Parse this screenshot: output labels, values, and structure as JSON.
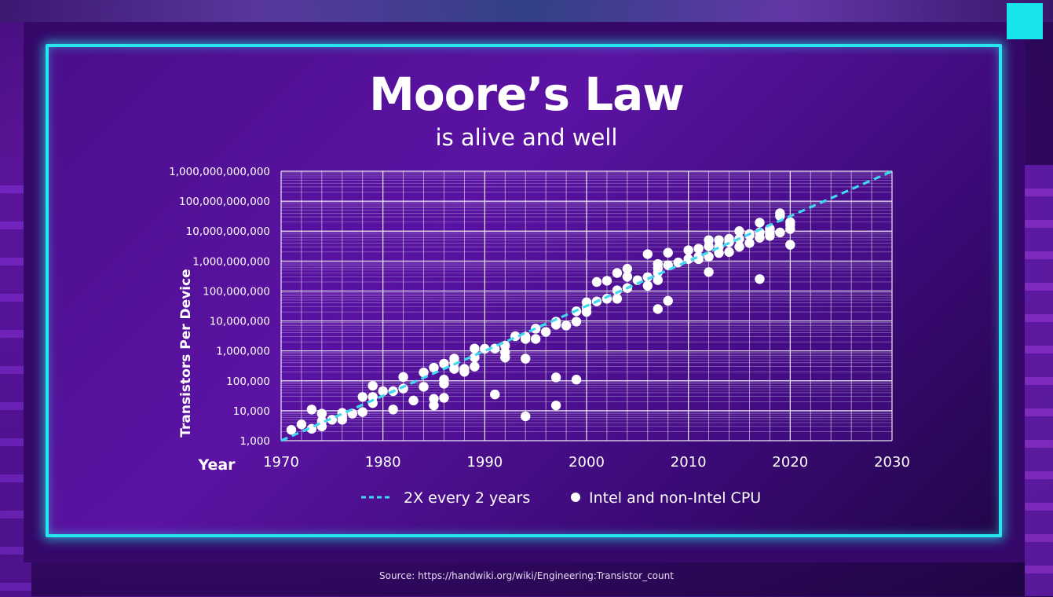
{
  "slide": {
    "title": "Moore’s Law",
    "subtitle": "is alive and well",
    "source": "Source: https://handwiki.org/wiki/Engineering:Transistor_count"
  },
  "colors": {
    "accent": "#27e6ee",
    "background": "#4b0e8c",
    "grid": "#ffffff",
    "points": "#ffffff",
    "trend": "#3fd8f0"
  },
  "chart_data": {
    "type": "scatter",
    "xlabel": "Year",
    "ylabel": "Transistors Per Device",
    "xlim": [
      1970,
      2030
    ],
    "ylim": [
      1000,
      1000000000000
    ],
    "yscale": "log",
    "grid": true,
    "x_ticks": [
      "1970",
      "1980",
      "1990",
      "2000",
      "2010",
      "2020",
      "2030"
    ],
    "y_ticks": [
      "1,000",
      "10,000",
      "100,000",
      "1,000,000",
      "10,000,000",
      "100,000,000",
      "1,000,000,000",
      "10,000,000,000",
      "100,000,000,000",
      "1,000,000,000,000"
    ],
    "legend": [
      {
        "label": "2X every 2 years",
        "marker": "dashed-line"
      },
      {
        "label": "Intel and non-Intel CPU",
        "marker": "dot"
      }
    ],
    "legend_position": "bottom",
    "trend": {
      "name": "2X every 2 years",
      "x": [
        1970,
        2030
      ],
      "y": [
        1000,
        1000000000000
      ]
    },
    "series": [
      {
        "name": "Intel and non-Intel CPU",
        "points": [
          [
            1971,
            2300
          ],
          [
            1972,
            3500
          ],
          [
            1973,
            2500
          ],
          [
            1973,
            11000
          ],
          [
            1974,
            4500
          ],
          [
            1974,
            8000
          ],
          [
            1974,
            3000
          ],
          [
            1975,
            5000
          ],
          [
            1976,
            6500
          ],
          [
            1976,
            8500
          ],
          [
            1976,
            5000
          ],
          [
            1977,
            8000
          ],
          [
            1978,
            9000
          ],
          [
            1978,
            29000
          ],
          [
            1979,
            29000
          ],
          [
            1979,
            68000
          ],
          [
            1979,
            18000
          ],
          [
            1980,
            45000
          ],
          [
            1981,
            45000
          ],
          [
            1981,
            11000
          ],
          [
            1982,
            55000
          ],
          [
            1982,
            134000
          ],
          [
            1983,
            22000
          ],
          [
            1984,
            190000
          ],
          [
            1984,
            63000
          ],
          [
            1985,
            25000
          ],
          [
            1985,
            15000
          ],
          [
            1985,
            275000
          ],
          [
            1986,
            110000
          ],
          [
            1986,
            27000
          ],
          [
            1986,
            375000
          ],
          [
            1986,
            80000
          ],
          [
            1987,
            550000
          ],
          [
            1987,
            400000
          ],
          [
            1987,
            250000
          ],
          [
            1988,
            200000
          ],
          [
            1988,
            250000
          ],
          [
            1989,
            1200000
          ],
          [
            1989,
            600000
          ],
          [
            1989,
            300000
          ],
          [
            1990,
            1180000
          ],
          [
            1991,
            1200000
          ],
          [
            1991,
            35000
          ],
          [
            1992,
            1500000
          ],
          [
            1992,
            900000
          ],
          [
            1992,
            600000
          ],
          [
            1993,
            3100000
          ],
          [
            1994,
            3000000
          ],
          [
            1994,
            2500000
          ],
          [
            1994,
            550000
          ],
          [
            1994,
            6500
          ],
          [
            1995,
            2500000
          ],
          [
            1995,
            5500000
          ],
          [
            1996,
            4300000
          ],
          [
            1997,
            7500000
          ],
          [
            1997,
            9500000
          ],
          [
            1997,
            130000
          ],
          [
            1997,
            15000
          ],
          [
            1998,
            7000000
          ],
          [
            1999,
            9500000
          ],
          [
            1999,
            21000000
          ],
          [
            1999,
            110000
          ],
          [
            2000,
            28000000
          ],
          [
            2000,
            42000000
          ],
          [
            2000,
            20000000
          ],
          [
            2001,
            45000000
          ],
          [
            2001,
            200000000
          ],
          [
            2002,
            55000000
          ],
          [
            2002,
            220000000
          ],
          [
            2003,
            55000000
          ],
          [
            2003,
            105000000
          ],
          [
            2003,
            400000000
          ],
          [
            2004,
            125000000
          ],
          [
            2004,
            550000000
          ],
          [
            2004,
            300000000
          ],
          [
            2005,
            230000000
          ],
          [
            2006,
            291000000
          ],
          [
            2006,
            1700000000
          ],
          [
            2006,
            150000000
          ],
          [
            2007,
            410000000
          ],
          [
            2007,
            800000000
          ],
          [
            2007,
            25000000
          ],
          [
            2007,
            230000000
          ],
          [
            2007,
            580000000
          ],
          [
            2008,
            1900000000
          ],
          [
            2008,
            731000000
          ],
          [
            2008,
            47000000
          ],
          [
            2009,
            900000000
          ],
          [
            2010,
            1170000000
          ],
          [
            2010,
            2300000000
          ],
          [
            2011,
            1160000000
          ],
          [
            2011,
            2600000000
          ],
          [
            2011,
            1400000000
          ],
          [
            2012,
            1400000000
          ],
          [
            2012,
            5000000000
          ],
          [
            2012,
            3100000000
          ],
          [
            2012,
            430000000
          ],
          [
            2013,
            1860000000
          ],
          [
            2013,
            5000000000
          ],
          [
            2013,
            3000000000
          ],
          [
            2014,
            4300000000
          ],
          [
            2014,
            2000000000
          ],
          [
            2014,
            5500000000
          ],
          [
            2015,
            5500000000
          ],
          [
            2015,
            10000000000
          ],
          [
            2015,
            3000000000
          ],
          [
            2016,
            7200000000
          ],
          [
            2016,
            4000000000
          ],
          [
            2016,
            8000000000
          ],
          [
            2017,
            19200000000
          ],
          [
            2017,
            6000000000
          ],
          [
            2017,
            9000000000
          ],
          [
            2017,
            250000000
          ],
          [
            2018,
            9000000000
          ],
          [
            2018,
            6900000000
          ],
          [
            2018,
            12000000000
          ],
          [
            2019,
            39500000000
          ],
          [
            2019,
            9000000000
          ],
          [
            2019,
            32000000000
          ],
          [
            2020,
            16000000000
          ],
          [
            2020,
            11800000000
          ],
          [
            2020,
            3500000000
          ],
          [
            2020,
            20000000000
          ]
        ]
      }
    ]
  }
}
